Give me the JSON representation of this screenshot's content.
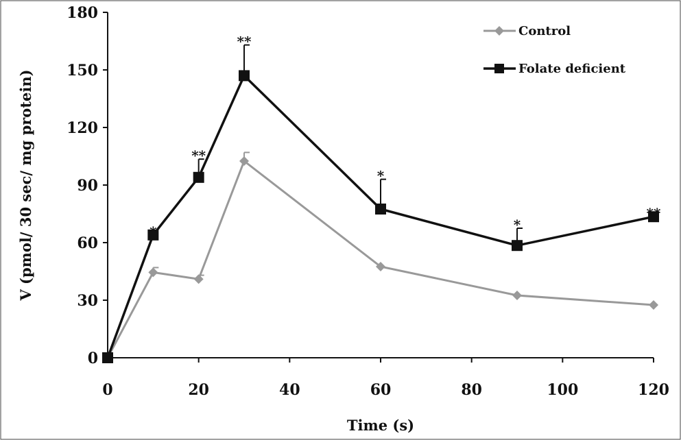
{
  "chart_data": {
    "type": "line",
    "title": "",
    "xlabel": "Time (s)",
    "ylabel": "V (pmol/ 30 sec/ mg protein)",
    "xlim": [
      0,
      120
    ],
    "ylim": [
      0,
      180
    ],
    "xticks": [
      0,
      20,
      40,
      60,
      80,
      100,
      120
    ],
    "yticks": [
      0,
      30,
      60,
      90,
      120,
      150,
      180
    ],
    "grid": false,
    "legend_position": "top-right",
    "x": [
      0,
      10,
      20,
      30,
      60,
      90,
      120
    ],
    "series": [
      {
        "name": "Control",
        "color": "#999999",
        "marker": "diamond",
        "values": [
          0,
          44.5,
          41,
          102.5,
          47.5,
          32.5,
          27.5
        ],
        "error": [
          0,
          2.5,
          2,
          4.5,
          0,
          0,
          0
        ]
      },
      {
        "name": "Folate deficient",
        "color": "#111111",
        "marker": "square",
        "values": [
          0,
          64,
          94,
          147,
          77.5,
          58.5,
          73.5
        ],
        "error": [
          0,
          0,
          9.5,
          16,
          15.5,
          9,
          0
        ],
        "significance": [
          "",
          "*",
          "**",
          "**",
          "*",
          "*",
          "**"
        ]
      }
    ]
  }
}
